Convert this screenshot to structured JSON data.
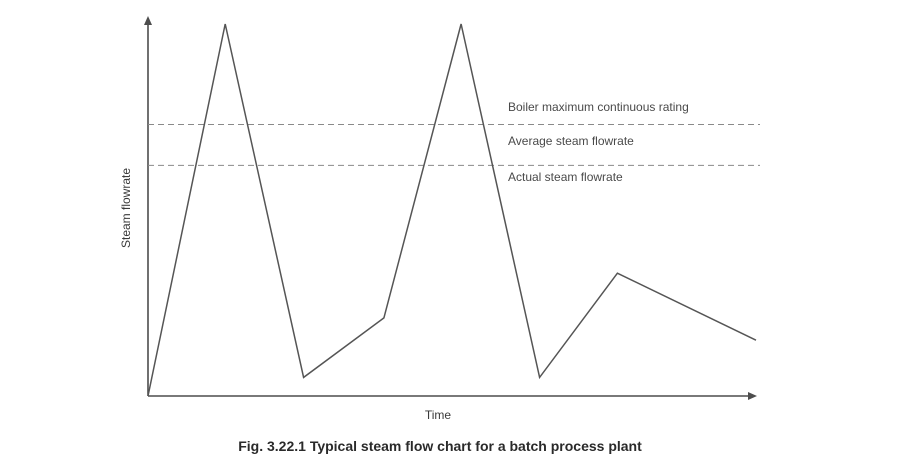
{
  "chart_data": {
    "type": "line",
    "title": "Fig. 3.22.1 Typical steam flow chart for a batch process plant",
    "xlabel": "Time",
    "ylabel": "Steam flowrate",
    "xlim": [
      0,
      100
    ],
    "ylim": [
      0,
      100
    ],
    "grid": false,
    "series": [
      {
        "name": "Actual steam flowrate",
        "x": [
          0,
          12.7,
          25.6,
          38.8,
          51.5,
          64.4,
          77.2,
          100
        ],
        "y": [
          0,
          100,
          5,
          21,
          100,
          5,
          33,
          15
        ]
      }
    ],
    "reference_lines": [
      {
        "label": "Boiler maximum continuous rating",
        "y": 73
      },
      {
        "label": "Average steam flowrate",
        "y": 62
      }
    ],
    "annotations": [
      {
        "text": "Boiler maximum continuous rating"
      },
      {
        "text": "Average steam flowrate"
      },
      {
        "text": "Actual steam flowrate"
      }
    ]
  }
}
